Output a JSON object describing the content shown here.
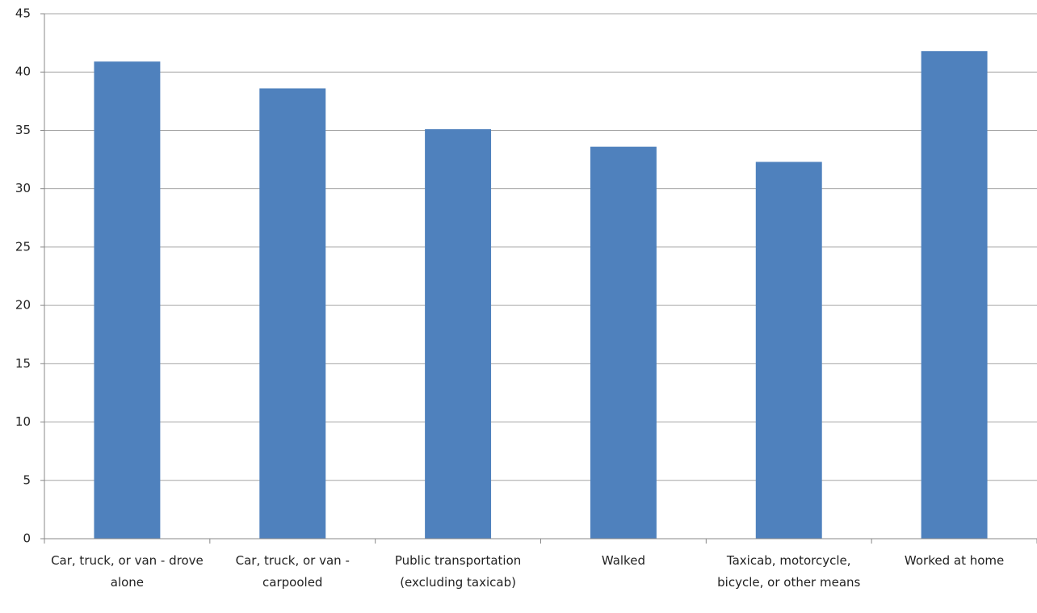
{
  "chart_data": {
    "type": "bar",
    "categories": [
      "Car, truck, or van - drove alone",
      "Car, truck, or van - carpooled",
      "Public transportation (excluding taxicab)",
      "Walked",
      "Taxicab, motorcycle, bicycle, or other means",
      "Worked at home"
    ],
    "values": [
      40.9,
      38.6,
      35.1,
      33.6,
      32.3,
      41.8
    ],
    "color": "#4f81bd",
    "ylim": [
      0,
      45
    ],
    "yticks": [
      0,
      5,
      10,
      15,
      20,
      25,
      30,
      35,
      40,
      45
    ],
    "grid": true
  }
}
